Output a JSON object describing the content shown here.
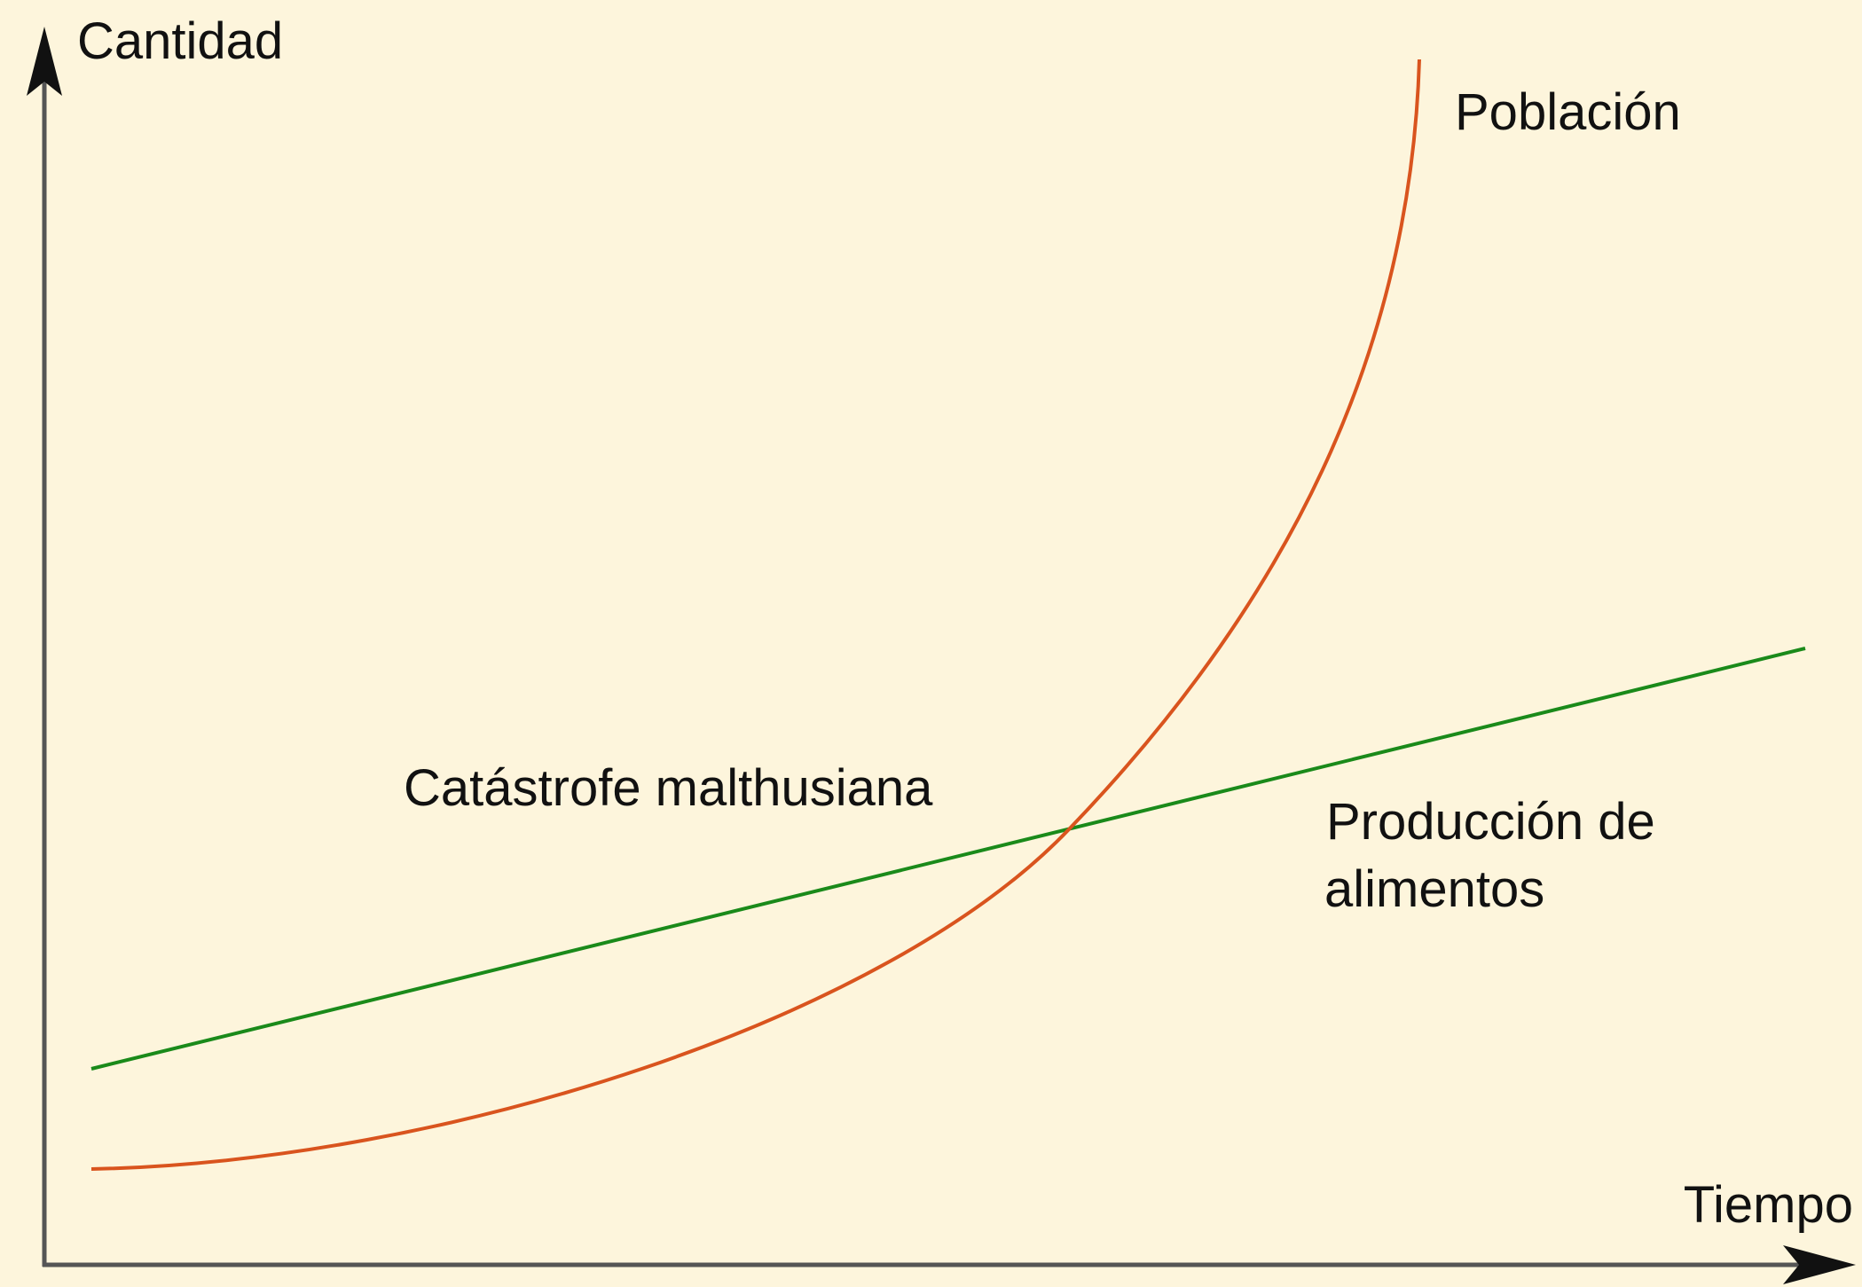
{
  "y_axis_label": "Cantidad",
  "x_axis_label": "Tiempo",
  "curves": [
    {
      "label": "Población"
    },
    {
      "label": "Producción de alimentos",
      "lines": [
        "Producción de",
        "alimentos"
      ]
    }
  ],
  "annotation": "Catástrofe malthusiana"
}
